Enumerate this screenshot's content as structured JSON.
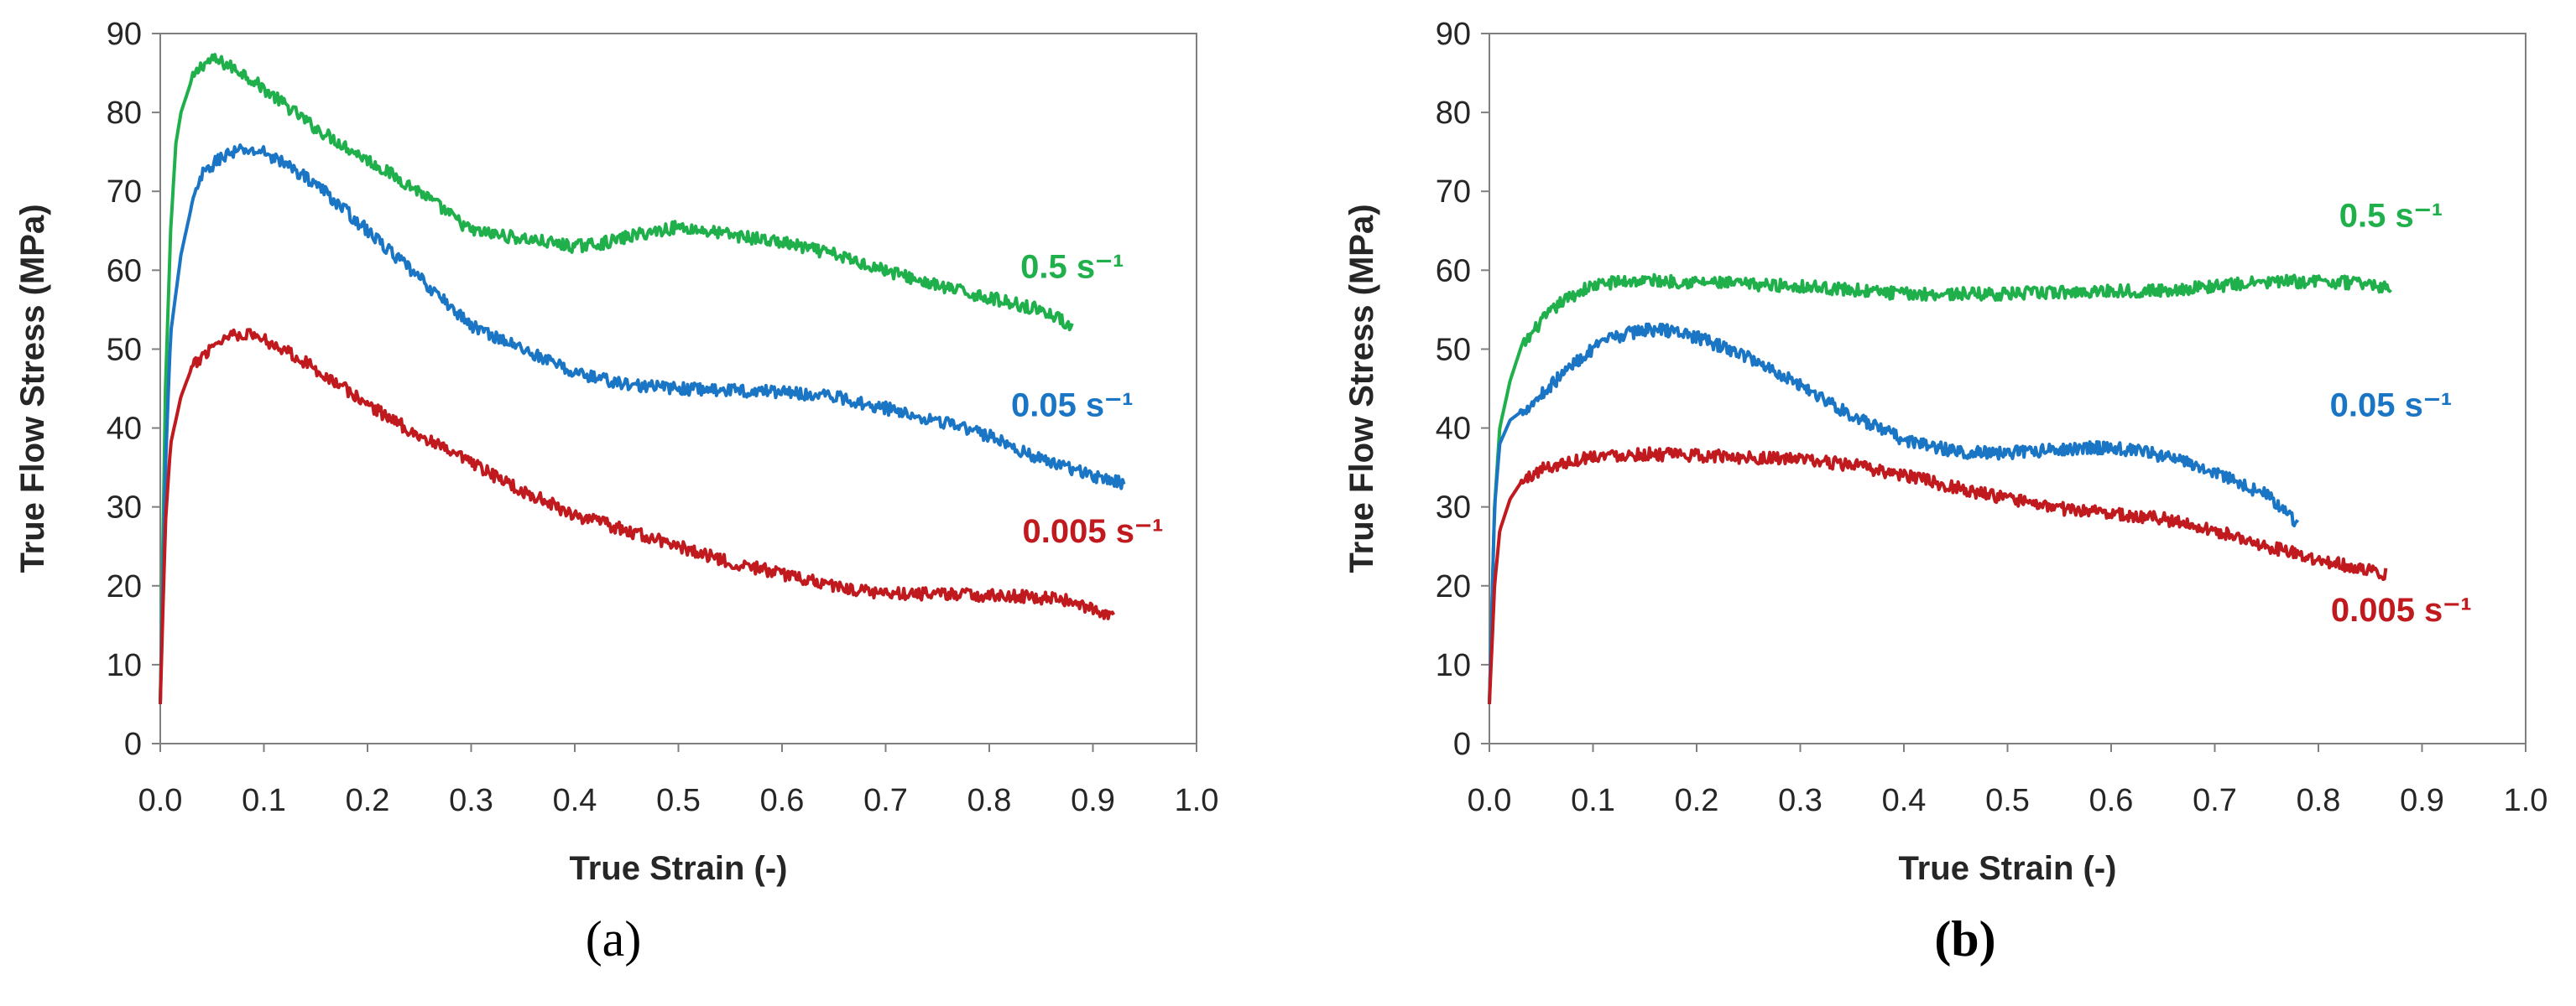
{
  "chart_data": [
    {
      "type": "line",
      "panel_label": "(a)",
      "xlabel": "True Strain (-)",
      "ylabel": "True Flow Stress (MPa)",
      "xlim": [
        0,
        1.0
      ],
      "ylim": [
        0,
        90
      ],
      "xticks": [
        "0.0",
        "0.1",
        "0.2",
        "0.3",
        "0.4",
        "0.5",
        "0.6",
        "0.7",
        "0.8",
        "0.9",
        "1.0"
      ],
      "yticks": [
        "0",
        "10",
        "20",
        "30",
        "40",
        "50",
        "60",
        "70",
        "80",
        "90"
      ],
      "grid": false,
      "series": [
        {
          "name": "0.5 s⁻¹",
          "color": "#1fb04b",
          "points": [
            [
              0,
              5
            ],
            [
              0.005,
              45
            ],
            [
              0.01,
              65
            ],
            [
              0.015,
              76
            ],
            [
              0.02,
              80
            ],
            [
              0.03,
              84
            ],
            [
              0.04,
              86
            ],
            [
              0.05,
              86.7
            ],
            [
              0.06,
              86.3
            ],
            [
              0.08,
              85
            ],
            [
              0.1,
              83
            ],
            [
              0.12,
              81
            ],
            [
              0.15,
              78
            ],
            [
              0.2,
              74
            ],
            [
              0.25,
              70
            ],
            [
              0.28,
              67
            ],
            [
              0.3,
              65
            ],
            [
              0.35,
              64
            ],
            [
              0.4,
              63
            ],
            [
              0.43,
              63.5
            ],
            [
              0.46,
              64.5
            ],
            [
              0.5,
              65.5
            ],
            [
              0.55,
              64.5
            ],
            [
              0.6,
              63.5
            ],
            [
              0.65,
              62
            ],
            [
              0.7,
              60
            ],
            [
              0.75,
              58
            ],
            [
              0.8,
              56.5
            ],
            [
              0.85,
              55
            ],
            [
              0.88,
              53
            ]
          ],
          "label_pos": [
            0.88,
            59
          ]
        },
        {
          "name": "0.05 s⁻¹",
          "color": "#1a75c4",
          "points": [
            [
              0,
              5
            ],
            [
              0.005,
              35
            ],
            [
              0.01,
              52
            ],
            [
              0.02,
              62
            ],
            [
              0.03,
              68
            ],
            [
              0.04,
              72
            ],
            [
              0.06,
              74.5
            ],
            [
              0.08,
              75.2
            ],
            [
              0.1,
              75
            ],
            [
              0.12,
              73.5
            ],
            [
              0.15,
              71
            ],
            [
              0.2,
              65
            ],
            [
              0.25,
              59
            ],
            [
              0.3,
              53
            ],
            [
              0.35,
              50
            ],
            [
              0.4,
              47
            ],
            [
              0.45,
              45.5
            ],
            [
              0.5,
              45
            ],
            [
              0.55,
              44.8
            ],
            [
              0.6,
              44.6
            ],
            [
              0.65,
              44
            ],
            [
              0.7,
              42.5
            ],
            [
              0.75,
              41
            ],
            [
              0.8,
              39
            ],
            [
              0.85,
              36
            ],
            [
              0.9,
              34
            ],
            [
              0.93,
              33
            ]
          ],
          "label_pos": [
            0.88,
            41.5
          ]
        },
        {
          "name": "0.005 s⁻¹",
          "color": "#c0191e",
          "points": [
            [
              0,
              5
            ],
            [
              0.005,
              28
            ],
            [
              0.01,
              38
            ],
            [
              0.02,
              44
            ],
            [
              0.03,
              47.5
            ],
            [
              0.05,
              50.5
            ],
            [
              0.07,
              52
            ],
            [
              0.09,
              51.8
            ],
            [
              0.12,
              50
            ],
            [
              0.15,
              47.5
            ],
            [
              0.2,
              43
            ],
            [
              0.25,
              39
            ],
            [
              0.3,
              35.5
            ],
            [
              0.35,
              32
            ],
            [
              0.4,
              29
            ],
            [
              0.45,
              27
            ],
            [
              0.5,
              25
            ],
            [
              0.55,
              23
            ],
            [
              0.6,
              21.5
            ],
            [
              0.65,
              20
            ],
            [
              0.7,
              19
            ],
            [
              0.75,
              19
            ],
            [
              0.8,
              18.8
            ],
            [
              0.85,
              18.5
            ],
            [
              0.88,
              18
            ],
            [
              0.9,
              17
            ],
            [
              0.92,
              16
            ]
          ],
          "label_pos": [
            0.9,
            25.5
          ]
        }
      ]
    },
    {
      "type": "line",
      "panel_label": "(b)",
      "xlabel": "True Strain (-)",
      "ylabel": "True Flow Stress (MPa)",
      "xlim": [
        0,
        1.0
      ],
      "ylim": [
        0,
        90
      ],
      "xticks": [
        "0.0",
        "0.1",
        "0.2",
        "0.3",
        "0.4",
        "0.5",
        "0.6",
        "0.7",
        "0.8",
        "0.9",
        "1.0"
      ],
      "yticks": [
        "0",
        "10",
        "20",
        "30",
        "40",
        "50",
        "60",
        "70",
        "80",
        "90"
      ],
      "grid": false,
      "series": [
        {
          "name": "0.5 s⁻¹",
          "color": "#1fb04b",
          "points": [
            [
              0,
              5
            ],
            [
              0.005,
              30
            ],
            [
              0.01,
              40
            ],
            [
              0.02,
              46
            ],
            [
              0.03,
              50
            ],
            [
              0.05,
              53.5
            ],
            [
              0.07,
              56
            ],
            [
              0.09,
              57.5
            ],
            [
              0.1,
              58
            ],
            [
              0.12,
              58.5
            ],
            [
              0.15,
              58.7
            ],
            [
              0.2,
              58.5
            ],
            [
              0.25,
              58.2
            ],
            [
              0.3,
              58
            ],
            [
              0.35,
              57.5
            ],
            [
              0.4,
              57
            ],
            [
              0.45,
              57
            ],
            [
              0.5,
              57
            ],
            [
              0.55,
              57.2
            ],
            [
              0.6,
              57.4
            ],
            [
              0.65,
              57.4
            ],
            [
              0.7,
              58
            ],
            [
              0.75,
              58.5
            ],
            [
              0.8,
              58.6
            ],
            [
              0.85,
              58.3
            ],
            [
              0.87,
              57.5
            ]
          ],
          "label_pos": [
            0.87,
            65.5
          ]
        },
        {
          "name": "0.05 s⁻¹",
          "color": "#1a75c4",
          "points": [
            [
              0,
              5
            ],
            [
              0.005,
              30
            ],
            [
              0.01,
              38
            ],
            [
              0.02,
              41
            ],
            [
              0.04,
              43
            ],
            [
              0.06,
              45.5
            ],
            [
              0.08,
              48
            ],
            [
              0.1,
              50
            ],
            [
              0.12,
              51.5
            ],
            [
              0.15,
              52.5
            ],
            [
              0.18,
              52.3
            ],
            [
              0.2,
              51.5
            ],
            [
              0.25,
              49
            ],
            [
              0.3,
              45.5
            ],
            [
              0.35,
              41.5
            ],
            [
              0.4,
              38.5
            ],
            [
              0.45,
              37
            ],
            [
              0.5,
              36.8
            ],
            [
              0.55,
              37.3
            ],
            [
              0.6,
              37.6
            ],
            [
              0.65,
              36.5
            ],
            [
              0.7,
              34.5
            ],
            [
              0.75,
              31.5
            ],
            [
              0.78,
              28
            ]
          ],
          "label_pos": [
            0.87,
            41.5
          ]
        },
        {
          "name": "0.005 s⁻¹",
          "color": "#c0191e",
          "points": [
            [
              0,
              5
            ],
            [
              0.005,
              20
            ],
            [
              0.01,
              27
            ],
            [
              0.02,
              31
            ],
            [
              0.03,
              33
            ],
            [
              0.05,
              34.8
            ],
            [
              0.08,
              35.8
            ],
            [
              0.1,
              36.5
            ],
            [
              0.15,
              36.7
            ],
            [
              0.2,
              36.5
            ],
            [
              0.25,
              36.3
            ],
            [
              0.3,
              36
            ],
            [
              0.35,
              35.3
            ],
            [
              0.4,
              34
            ],
            [
              0.45,
              32.5
            ],
            [
              0.5,
              31
            ],
            [
              0.55,
              29.8
            ],
            [
              0.6,
              29.2
            ],
            [
              0.65,
              28.5
            ],
            [
              0.7,
              27
            ],
            [
              0.75,
              25
            ],
            [
              0.8,
              23.3
            ],
            [
              0.85,
              22
            ],
            [
              0.865,
              21.5
            ]
          ],
          "label_pos": [
            0.88,
            15.5
          ]
        }
      ]
    }
  ]
}
